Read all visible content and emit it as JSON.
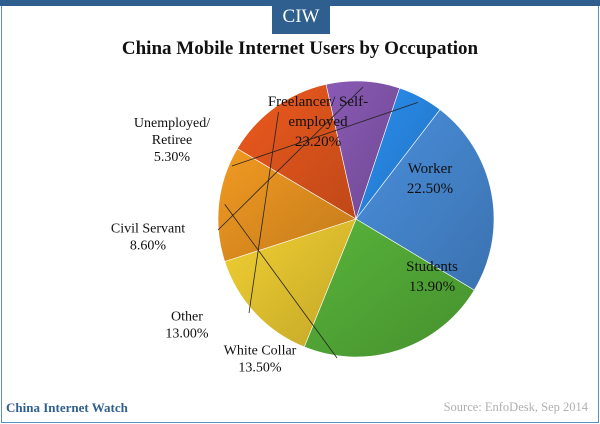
{
  "brand": {
    "badge": "CIW",
    "footer_left": "China Internet Watch",
    "footer_right": "Source: EnfoDesk, Sep 2014"
  },
  "chart_data": {
    "type": "pie",
    "title": "China Mobile Internet Users by Occupation",
    "slices": [
      {
        "name": "Freelancer/ Self-employed",
        "lines": [
          "Freelancer/ Self-",
          "employed"
        ],
        "value": 23.2,
        "label": "23.20%",
        "color": "#4a8fdc"
      },
      {
        "name": "Worker",
        "lines": [
          "Worker"
        ],
        "value": 22.5,
        "label": "22.50%",
        "color": "#58b43a"
      },
      {
        "name": "Students",
        "lines": [
          "Students"
        ],
        "value": 13.9,
        "label": "13.90%",
        "color": "#f2d032"
      },
      {
        "name": "White Collar",
        "lines": [
          "White Collar"
        ],
        "value": 13.5,
        "label": "13.50%",
        "color": "#f29a22"
      },
      {
        "name": "Other",
        "lines": [
          "Other"
        ],
        "value": 13.0,
        "label": "13.00%",
        "color": "#ee5a1e"
      },
      {
        "name": "Civil Servant",
        "lines": [
          "Civil Servant"
        ],
        "value": 8.6,
        "label": "8.60%",
        "color": "#8a5ab5"
      },
      {
        "name": "Unemployed/ Retiree",
        "lines": [
          "Unemployed/",
          "Retiree"
        ],
        "value": 5.3,
        "label": "5.30%",
        "color": "#2a8ff0"
      }
    ]
  }
}
